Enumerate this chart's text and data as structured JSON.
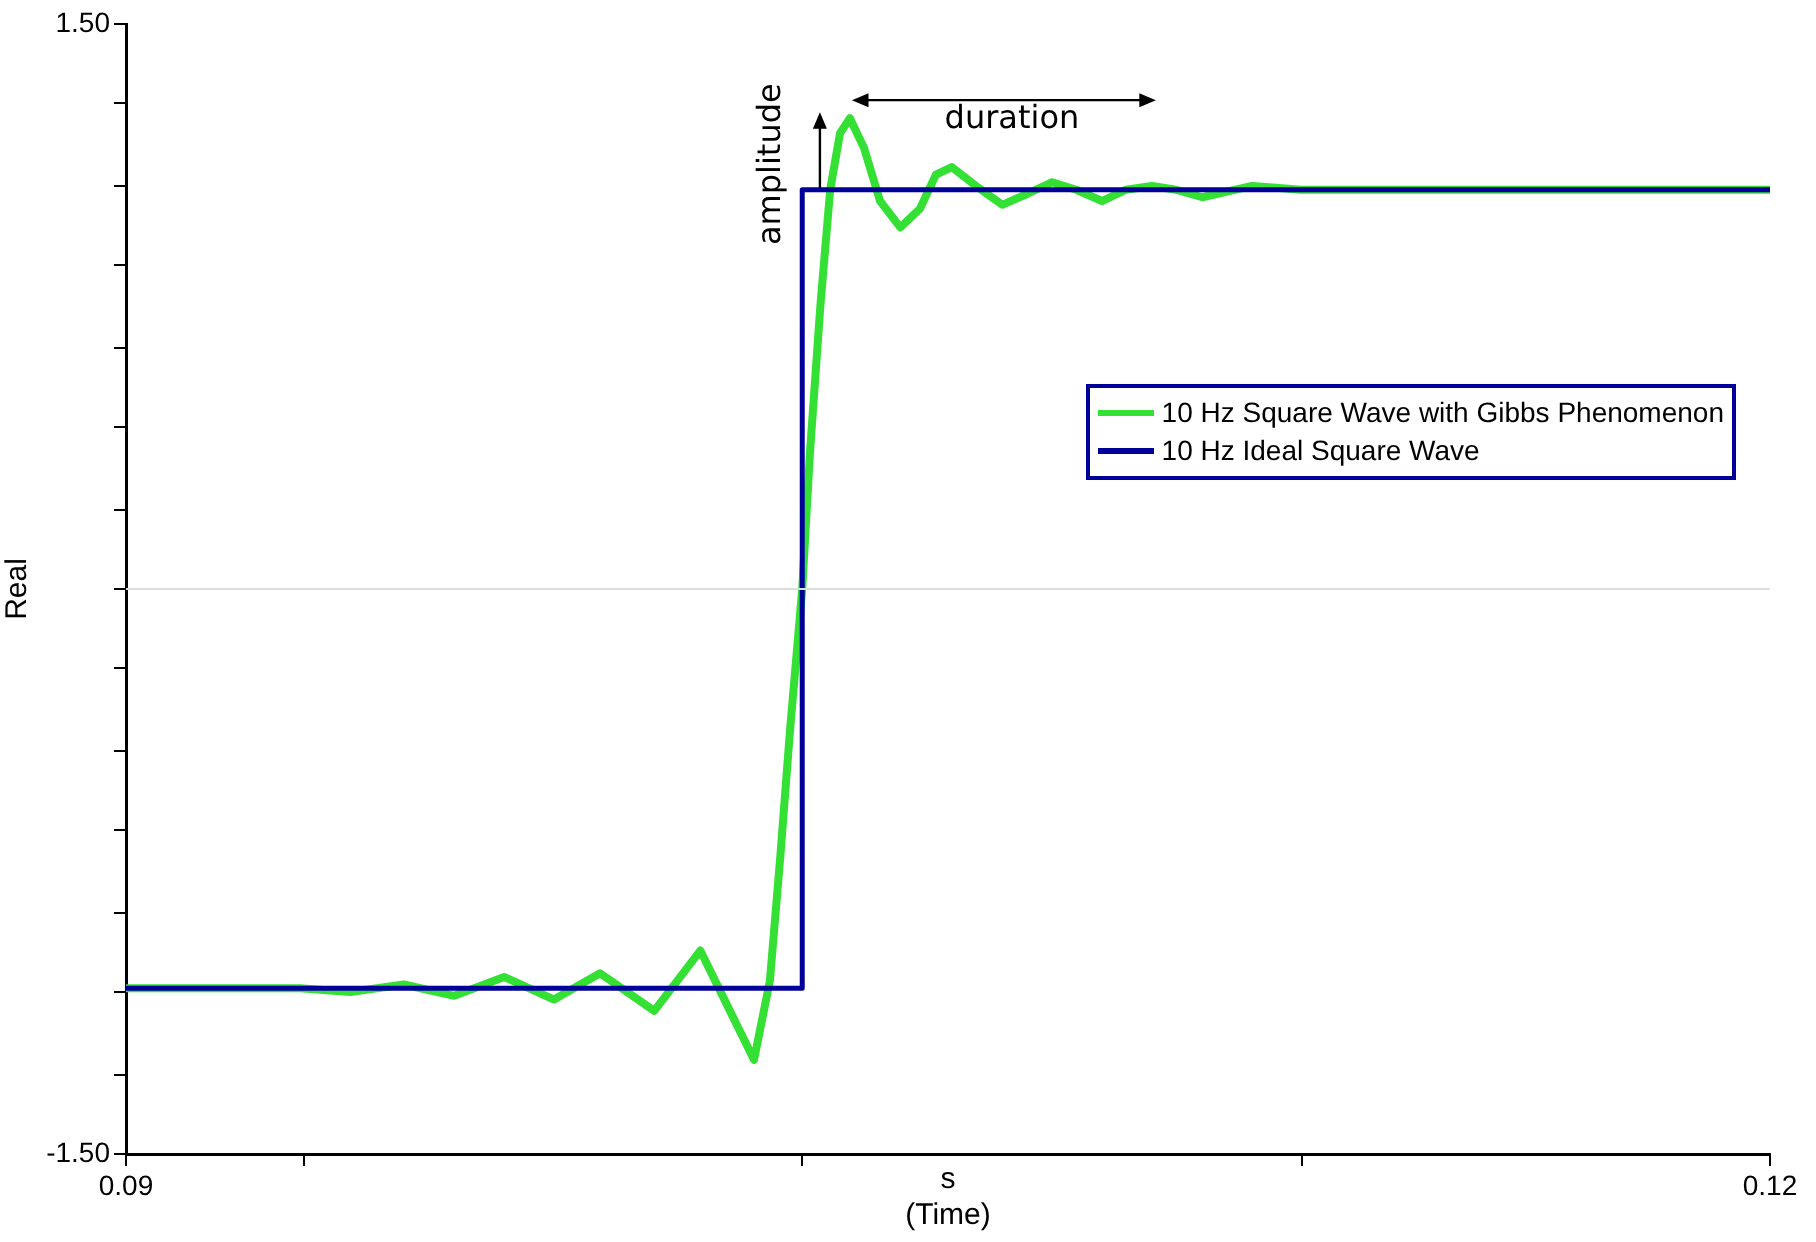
{
  "chart_data": {
    "type": "line",
    "xlabel": "s\n(Time)",
    "ylabel": "Real",
    "xlim": [
      0.09,
      0.12
    ],
    "ylim": [
      -1.5,
      1.5
    ],
    "xticks": [
      {
        "value": 0.09,
        "label": "0.09"
      },
      {
        "value": 0.09325,
        "label": null
      },
      {
        "value": 0.10234,
        "label": null
      },
      {
        "value": 0.11146,
        "label": null
      },
      {
        "value": 0.12,
        "label": "0.12"
      }
    ],
    "yticks": [
      {
        "value": -1.5,
        "label": "-1.50"
      },
      {
        "value": -1.29,
        "label": null
      },
      {
        "value": -1.07,
        "label": null
      },
      {
        "value": -0.86,
        "label": null
      },
      {
        "value": -0.64,
        "label": null
      },
      {
        "value": -0.43,
        "label": null
      },
      {
        "value": -0.21,
        "label": null
      },
      {
        "value": 0,
        "label": null
      },
      {
        "value": 0.21,
        "label": null
      },
      {
        "value": 0.43,
        "label": null
      },
      {
        "value": 0.64,
        "label": null
      },
      {
        "value": 0.86,
        "label": null
      },
      {
        "value": 1.07,
        "label": null
      },
      {
        "value": 1.29,
        "label": null
      },
      {
        "value": 1.5,
        "label": "1.50"
      }
    ],
    "grid": false,
    "legend": "right",
    "marker": "none",
    "line_style": "solid",
    "ref_lines": [
      {
        "axis": "y",
        "value": 0,
        "color": "#dddddd"
      }
    ],
    "annotations": [
      "amplitude",
      "duration"
    ],
    "series": [
      {
        "name": "10 Hz Square Wave with Gibbs Phenomenon",
        "color": "#33e033",
        "x": [
          0.09,
          0.09135,
          0.09318,
          0.09409,
          0.09507,
          0.09599,
          0.0969,
          0.09781,
          0.09865,
          0.09964,
          0.10048,
          0.10146,
          0.10175,
          0.10194,
          0.10212,
          0.10234,
          0.10248,
          0.10267,
          0.10285,
          0.10303,
          0.10321,
          0.10347,
          0.10376,
          0.10413,
          0.10449,
          0.10478,
          0.10507,
          0.10551,
          0.10599,
          0.10646,
          0.1069,
          0.10734,
          0.10781,
          0.10825,
          0.10872,
          0.10916,
          0.10964,
          0.11055,
          0.11143,
          0.11325,
          0.1169,
          0.12
        ],
        "values": [
          -1.06,
          -1.06,
          -1.06,
          -1.07,
          -1.05,
          -1.08,
          -1.03,
          -1.09,
          -1.02,
          -1.12,
          -0.96,
          -1.25,
          -1.04,
          -0.71,
          -0.37,
          0,
          0.36,
          0.75,
          1.06,
          1.21,
          1.25,
          1.17,
          1.03,
          0.96,
          1.01,
          1.1,
          1.12,
          1.07,
          1.02,
          1.05,
          1.08,
          1.06,
          1.03,
          1.06,
          1.07,
          1.06,
          1.04,
          1.07,
          1.06,
          1.06,
          1.06,
          1.06
        ]
      },
      {
        "name": "10 Hz Ideal Square Wave",
        "color": "#000099",
        "x": [
          0.09,
          0.10234,
          0.10234,
          0.12
        ],
        "values": [
          -1.06,
          -1.06,
          1.06,
          1.06
        ]
      }
    ]
  }
}
